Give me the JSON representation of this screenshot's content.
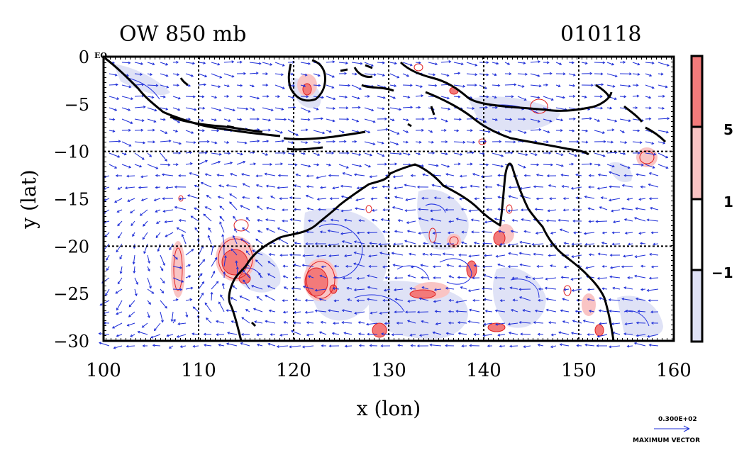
{
  "title_left": "OW 850 mb",
  "title_right": "010118",
  "axes": {
    "xlabel": "x (lon)",
    "ylabel": "y (lat)",
    "xlim": [
      100,
      160
    ],
    "ylim": [
      -30,
      0
    ],
    "x_ticks": [
      "100",
      "110",
      "120",
      "130",
      "140",
      "150",
      "160"
    ],
    "y_ticks": [
      {
        "value": 0,
        "label": "0"
      },
      {
        "value": -5,
        "label": "−5"
      },
      {
        "value": -10,
        "label": "−10"
      },
      {
        "value": -15,
        "label": "−15"
      },
      {
        "value": -20,
        "label": "−20"
      },
      {
        "value": -25,
        "label": "−25"
      },
      {
        "value": -30,
        "label": "−30"
      }
    ],
    "eq_label": "EQ"
  },
  "colorbar": {
    "labels": [
      "5",
      "1",
      "−1"
    ],
    "colors": [
      "#f37a7a",
      "#f9c4c4",
      "#ffffff",
      "#dfe2f6"
    ]
  },
  "vector_key": {
    "value": "0.300E+02",
    "label": "MAXIMUM VECTOR"
  },
  "colors": {
    "coast": "#000000",
    "vector": "#1f2fd8",
    "positive_fill": "#f37a7a",
    "positive_light": "#f9c4c4",
    "negative_fill": "#dfe2f6",
    "positive_line": "#e02020",
    "negative_line": "#2030e0"
  }
}
